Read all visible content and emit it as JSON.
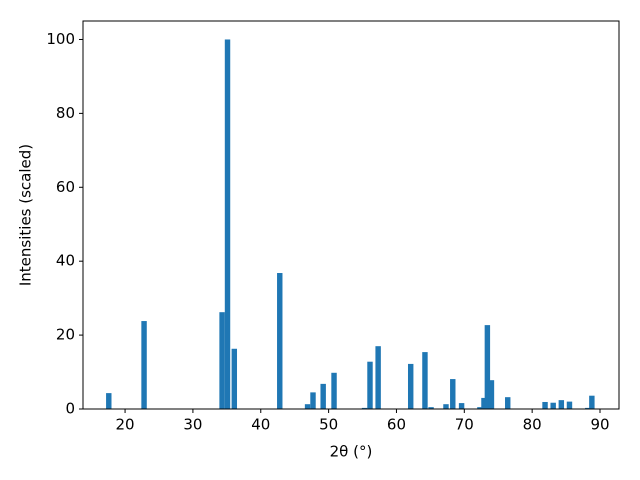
{
  "chart_data": {
    "type": "bar",
    "x": [
      17.6,
      22.8,
      34.3,
      35.1,
      36.1,
      42.8,
      46.9,
      47.7,
      49.2,
      50.8,
      55.3,
      56.1,
      57.3,
      62.1,
      64.2,
      65.1,
      67.3,
      68.3,
      69.6,
      72.3,
      72.9,
      73.4,
      74.0,
      76.4,
      81.9,
      83.1,
      84.3,
      85.5,
      88.2,
      88.8
    ],
    "values": [
      4.3,
      23.8,
      26.2,
      100,
      16.3,
      36.8,
      1.3,
      4.5,
      6.8,
      9.8,
      0.3,
      12.8,
      17.0,
      12.2,
      15.4,
      0.5,
      1.3,
      8.1,
      1.6,
      0.5,
      3.0,
      22.7,
      7.8,
      3.2,
      1.9,
      1.7,
      2.4,
      2.0,
      0.3,
      3.6
    ],
    "color": "#1f77b4",
    "xlabel": "2θ (°)",
    "ylabel": "Intensities (scaled)",
    "xlim": [
      13.8,
      92.8
    ],
    "ylim": [
      0,
      105
    ],
    "xticks": [
      20,
      30,
      40,
      50,
      60,
      70,
      80,
      90
    ],
    "yticks": [
      0,
      20,
      40,
      60,
      80,
      100
    ]
  }
}
